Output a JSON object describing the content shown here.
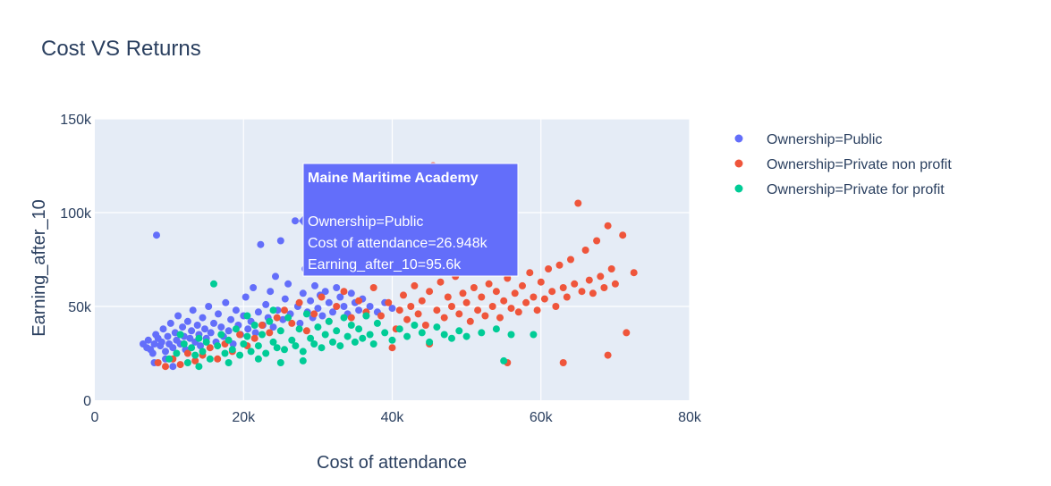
{
  "chart_data": {
    "type": "scatter",
    "title": "Cost VS Returns",
    "xlabel": "Cost of attendance",
    "ylabel": "Earning_after_10",
    "xlim": [
      0,
      80000
    ],
    "ylim": [
      0,
      150000
    ],
    "x_ticks": [
      {
        "value": 0,
        "label": "0"
      },
      {
        "value": 20000,
        "label": "20k"
      },
      {
        "value": 40000,
        "label": "40k"
      },
      {
        "value": 60000,
        "label": "60k"
      },
      {
        "value": 80000,
        "label": "80k"
      }
    ],
    "y_ticks": [
      {
        "value": 0,
        "label": "0"
      },
      {
        "value": 50000,
        "label": "50k"
      },
      {
        "value": 100000,
        "label": "100k"
      },
      {
        "value": 150000,
        "label": "150k"
      }
    ],
    "grid": true,
    "background": "#e5ecf6",
    "legend_position": "right",
    "series": [
      {
        "name": "Ownership=Public",
        "color": "#636efa",
        "points": [
          [
            6500,
            30000
          ],
          [
            7000,
            28000
          ],
          [
            7200,
            32000
          ],
          [
            7500,
            27000
          ],
          [
            7800,
            25000
          ],
          [
            8000,
            30000
          ],
          [
            8200,
            35000
          ],
          [
            8300,
            88000
          ],
          [
            8500,
            33000
          ],
          [
            8800,
            29000
          ],
          [
            9000,
            31000
          ],
          [
            9200,
            38000
          ],
          [
            9500,
            26000
          ],
          [
            9800,
            34000
          ],
          [
            10000,
            30000
          ],
          [
            10200,
            41000
          ],
          [
            10500,
            28000
          ],
          [
            10800,
            36000
          ],
          [
            11000,
            32000
          ],
          [
            11200,
            45000
          ],
          [
            11500,
            30000
          ],
          [
            11800,
            39000
          ],
          [
            12000,
            34000
          ],
          [
            12200,
            27000
          ],
          [
            12500,
            42000
          ],
          [
            12800,
            33000
          ],
          [
            13000,
            37000
          ],
          [
            13200,
            48000
          ],
          [
            13500,
            31000
          ],
          [
            13800,
            40000
          ],
          [
            14000,
            35000
          ],
          [
            14200,
            29000
          ],
          [
            14500,
            44000
          ],
          [
            14800,
            38000
          ],
          [
            15000,
            33000
          ],
          [
            15300,
            50000
          ],
          [
            15600,
            36000
          ],
          [
            16000,
            41000
          ],
          [
            16300,
            31000
          ],
          [
            16600,
            46000
          ],
          [
            17000,
            39000
          ],
          [
            17300,
            34000
          ],
          [
            17600,
            52000
          ],
          [
            18000,
            37000
          ],
          [
            18300,
            43000
          ],
          [
            18600,
            30000
          ],
          [
            19000,
            48000
          ],
          [
            19300,
            40000
          ],
          [
            19600,
            35000
          ],
          [
            20000,
            45000
          ],
          [
            20300,
            55000
          ],
          [
            20600,
            38000
          ],
          [
            21000,
            42000
          ],
          [
            21300,
            60000
          ],
          [
            21600,
            36000
          ],
          [
            22000,
            47000
          ],
          [
            22300,
            83000
          ],
          [
            22600,
            40000
          ],
          [
            23000,
            51000
          ],
          [
            23300,
            44000
          ],
          [
            23600,
            58000
          ],
          [
            24000,
            39000
          ],
          [
            24300,
            66000
          ],
          [
            24600,
            48000
          ],
          [
            25000,
            85000
          ],
          [
            25300,
            43000
          ],
          [
            25600,
            54000
          ],
          [
            26000,
            62000
          ],
          [
            26300,
            46000
          ],
          [
            26948,
            95600
          ],
          [
            27300,
            50000
          ],
          [
            27600,
            41000
          ],
          [
            28000,
            57000
          ],
          [
            28300,
            70000
          ],
          [
            28600,
            47000
          ],
          [
            29000,
            53000
          ],
          [
            29300,
            44000
          ],
          [
            29600,
            61000
          ],
          [
            30000,
            49000
          ],
          [
            30300,
            56000
          ],
          [
            30600,
            45000
          ],
          [
            31000,
            58000
          ],
          [
            31500,
            52000
          ],
          [
            32000,
            47000
          ],
          [
            32500,
            60000
          ],
          [
            33000,
            55000
          ],
          [
            33500,
            50000
          ],
          [
            34000,
            46000
          ],
          [
            34500,
            57000
          ],
          [
            35000,
            52000
          ],
          [
            35500,
            48000
          ],
          [
            36000,
            54000
          ],
          [
            36500,
            45000
          ],
          [
            37000,
            50000
          ],
          [
            38000,
            47000
          ],
          [
            39000,
            52000
          ],
          [
            40000,
            49000
          ],
          [
            9500,
            22000
          ],
          [
            8000,
            20000
          ],
          [
            10500,
            18000
          ]
        ]
      },
      {
        "name": "Ownership=Private non profit",
        "color": "#ef553b",
        "points": [
          [
            8500,
            20000
          ],
          [
            9500,
            18000
          ],
          [
            10500,
            22000
          ],
          [
            11500,
            19000
          ],
          [
            12500,
            25000
          ],
          [
            13500,
            21000
          ],
          [
            14500,
            24000
          ],
          [
            15500,
            28000
          ],
          [
            16500,
            22000
          ],
          [
            17500,
            30000
          ],
          [
            18500,
            26000
          ],
          [
            19500,
            35000
          ],
          [
            20500,
            29000
          ],
          [
            21500,
            33000
          ],
          [
            22500,
            40000
          ],
          [
            23500,
            36000
          ],
          [
            24500,
            44000
          ],
          [
            25500,
            48000
          ],
          [
            26500,
            41000
          ],
          [
            27500,
            52000
          ],
          [
            28500,
            37000
          ],
          [
            29500,
            46000
          ],
          [
            30500,
            55000
          ],
          [
            31500,
            42000
          ],
          [
            32500,
            50000
          ],
          [
            33500,
            58000
          ],
          [
            34500,
            44000
          ],
          [
            35500,
            53000
          ],
          [
            36500,
            47000
          ],
          [
            37500,
            60000
          ],
          [
            38500,
            45000
          ],
          [
            39500,
            52000
          ],
          [
            40500,
            38000
          ],
          [
            41000,
            48000
          ],
          [
            41500,
            56000
          ],
          [
            42000,
            43000
          ],
          [
            42500,
            50000
          ],
          [
            43000,
            61000
          ],
          [
            43500,
            46000
          ],
          [
            44000,
            53000
          ],
          [
            44500,
            40000
          ],
          [
            45000,
            58000
          ],
          [
            45500,
            125000
          ],
          [
            46000,
            48000
          ],
          [
            46500,
            63000
          ],
          [
            47000,
            44000
          ],
          [
            47500,
            55000
          ],
          [
            48000,
            50000
          ],
          [
            48500,
            66000
          ],
          [
            49000,
            46000
          ],
          [
            49500,
            57000
          ],
          [
            50000,
            52000
          ],
          [
            50500,
            42000
          ],
          [
            51000,
            60000
          ],
          [
            51500,
            48000
          ],
          [
            52000,
            55000
          ],
          [
            52500,
            45000
          ],
          [
            53000,
            62000
          ],
          [
            53500,
            50000
          ],
          [
            54000,
            58000
          ],
          [
            54500,
            44000
          ],
          [
            55000,
            53000
          ],
          [
            55500,
            65000
          ],
          [
            56000,
            49000
          ],
          [
            56500,
            57000
          ],
          [
            57000,
            47000
          ],
          [
            57500,
            61000
          ],
          [
            58000,
            52000
          ],
          [
            58500,
            68000
          ],
          [
            59000,
            55000
          ],
          [
            59500,
            48000
          ],
          [
            60000,
            63000
          ],
          [
            60500,
            54000
          ],
          [
            61000,
            70000
          ],
          [
            61500,
            58000
          ],
          [
            62000,
            50000
          ],
          [
            62500,
            72000
          ],
          [
            63000,
            60000
          ],
          [
            63500,
            55000
          ],
          [
            64000,
            75000
          ],
          [
            64500,
            62000
          ],
          [
            65000,
            105000
          ],
          [
            65500,
            58000
          ],
          [
            66000,
            80000
          ],
          [
            66500,
            64000
          ],
          [
            67000,
            57000
          ],
          [
            67500,
            85000
          ],
          [
            68000,
            66000
          ],
          [
            68500,
            60000
          ],
          [
            69000,
            93000
          ],
          [
            69500,
            70000
          ],
          [
            70000,
            62000
          ],
          [
            71000,
            88000
          ],
          [
            71500,
            36000
          ],
          [
            72500,
            68000
          ],
          [
            69000,
            24000
          ],
          [
            63000,
            20000
          ],
          [
            55500,
            20000
          ],
          [
            45000,
            30000
          ],
          [
            40000,
            28000
          ]
        ]
      },
      {
        "name": "Ownership=Private for profit",
        "color": "#00cc96",
        "points": [
          [
            10000,
            22000
          ],
          [
            11000,
            25000
          ],
          [
            12000,
            30000
          ],
          [
            12500,
            20000
          ],
          [
            13000,
            28000
          ],
          [
            13500,
            24000
          ],
          [
            14000,
            33000
          ],
          [
            14500,
            26000
          ],
          [
            15000,
            31000
          ],
          [
            15500,
            22000
          ],
          [
            16000,
            62000
          ],
          [
            16500,
            29000
          ],
          [
            17000,
            35000
          ],
          [
            17500,
            25000
          ],
          [
            18000,
            32000
          ],
          [
            18500,
            27000
          ],
          [
            19000,
            38000
          ],
          [
            19500,
            24000
          ],
          [
            20000,
            30000
          ],
          [
            20500,
            34000
          ],
          [
            21000,
            26000
          ],
          [
            21500,
            40000
          ],
          [
            22000,
            29000
          ],
          [
            22500,
            35000
          ],
          [
            23000,
            25000
          ],
          [
            23500,
            42000
          ],
          [
            24000,
            31000
          ],
          [
            24500,
            28000
          ],
          [
            25000,
            37000
          ],
          [
            25500,
            27000
          ],
          [
            26000,
            44000
          ],
          [
            26500,
            32000
          ],
          [
            27000,
            29000
          ],
          [
            27500,
            38000
          ],
          [
            28000,
            26000
          ],
          [
            28500,
            46000
          ],
          [
            29000,
            33000
          ],
          [
            29500,
            30000
          ],
          [
            30000,
            39000
          ],
          [
            30500,
            28000
          ],
          [
            31000,
            35000
          ],
          [
            31500,
            42000
          ],
          [
            32000,
            31000
          ],
          [
            32500,
            37000
          ],
          [
            33000,
            29000
          ],
          [
            33500,
            44000
          ],
          [
            34000,
            34000
          ],
          [
            34500,
            40000
          ],
          [
            35000,
            31000
          ],
          [
            35500,
            38000
          ],
          [
            36000,
            33000
          ],
          [
            36500,
            45000
          ],
          [
            37000,
            35000
          ],
          [
            37500,
            30000
          ],
          [
            38000,
            41000
          ],
          [
            39000,
            36000
          ],
          [
            40000,
            32000
          ],
          [
            41000,
            38000
          ],
          [
            42000,
            34000
          ],
          [
            43000,
            40000
          ],
          [
            44000,
            36000
          ],
          [
            45000,
            31000
          ],
          [
            46000,
            39000
          ],
          [
            47000,
            35000
          ],
          [
            48000,
            33000
          ],
          [
            49000,
            37000
          ],
          [
            50000,
            34000
          ],
          [
            52000,
            36000
          ],
          [
            54000,
            38000
          ],
          [
            55000,
            21000
          ],
          [
            56000,
            35000
          ],
          [
            59000,
            35000
          ],
          [
            11500,
            35000
          ],
          [
            14000,
            18000
          ],
          [
            18000,
            20000
          ],
          [
            22000,
            22000
          ],
          [
            25000,
            20000
          ],
          [
            28000,
            21000
          ],
          [
            20500,
            45000
          ],
          [
            24000,
            48000
          ]
        ]
      }
    ],
    "hover_label": {
      "title": "Maine Maritime Academy",
      "lines": [
        "Ownership=Public",
        "Cost of attendance=26.948k",
        "Earning_after_10=95.6k"
      ],
      "x": 26948,
      "y": 95600,
      "color": "#636efa"
    }
  }
}
